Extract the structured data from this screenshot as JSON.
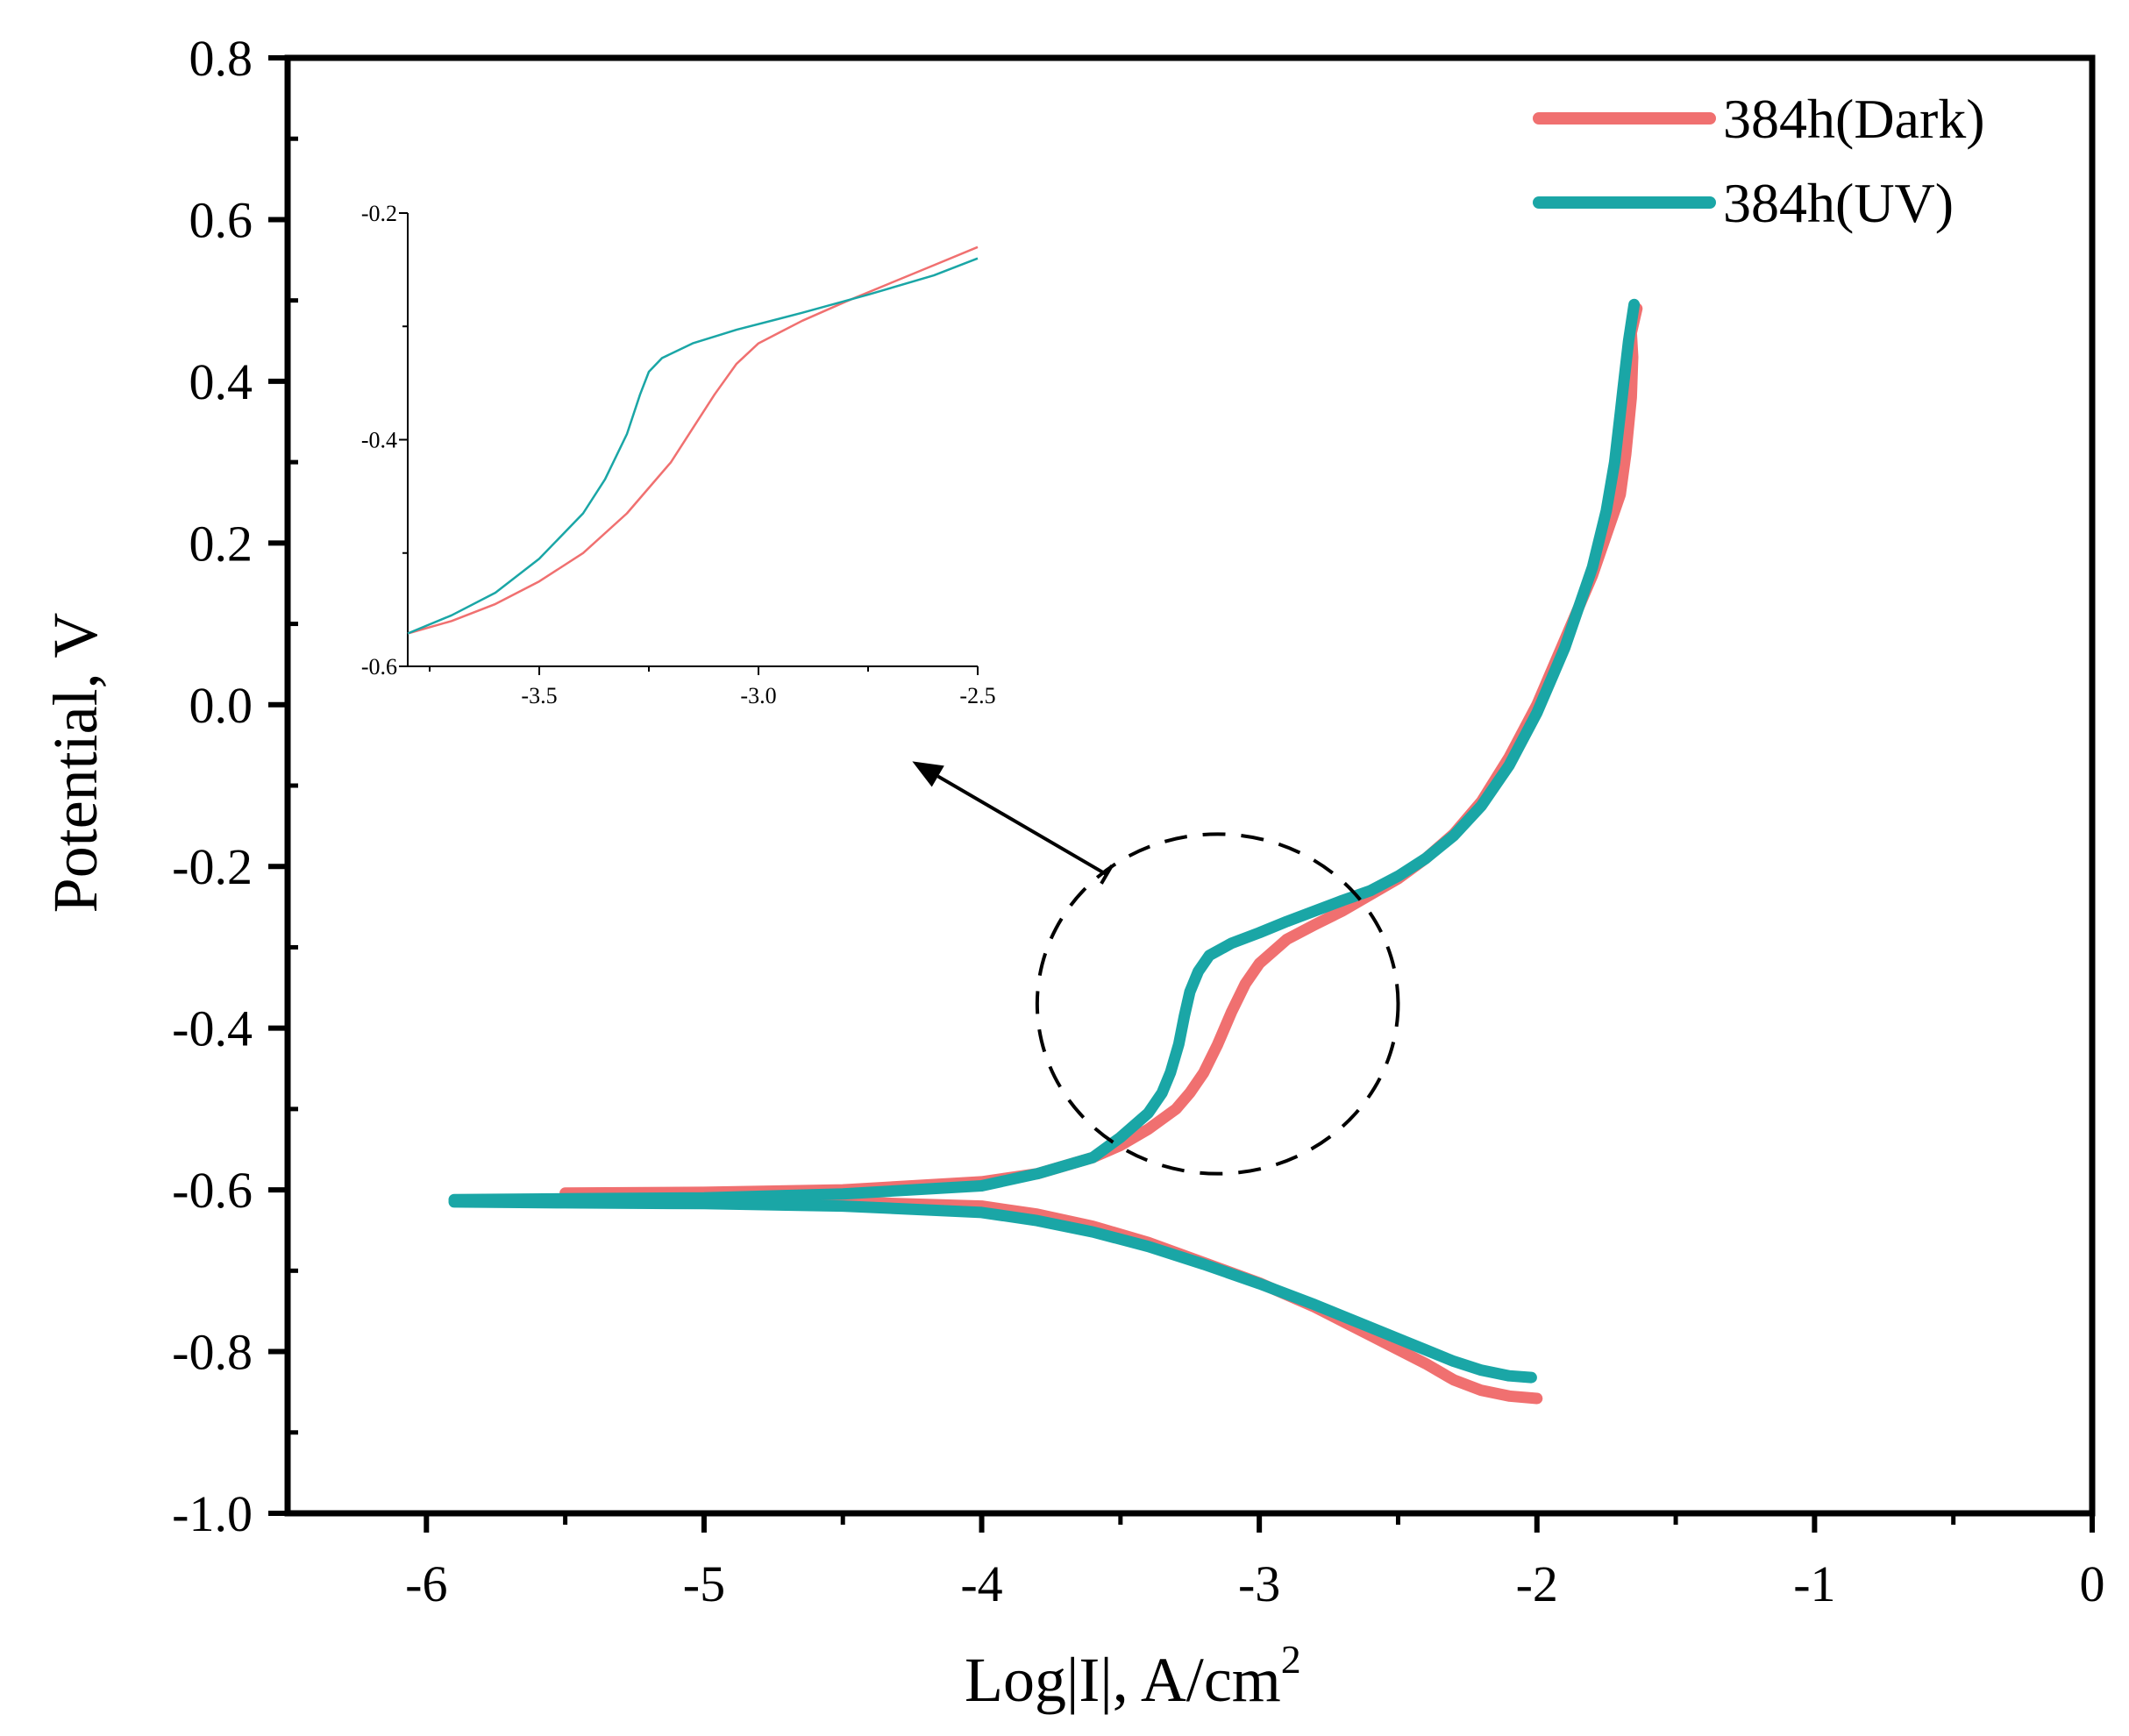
{
  "chart_data": {
    "type": "line",
    "title": "",
    "xlabel": "Log|I|, A/cm",
    "xlabel_superscript": "2",
    "ylabel": "Potential, V",
    "xlim": [
      -6.5,
      0
    ],
    "ylim": [
      -1.0,
      0.8
    ],
    "x_ticks": [
      "-6",
      "-5",
      "-4",
      "-3",
      "-2",
      "-1",
      "0"
    ],
    "y_ticks": [
      "-1.0",
      "-0.8",
      "-0.6",
      "-0.4",
      "-0.2",
      "0.0",
      "0.2",
      "0.4",
      "0.6",
      "0.8"
    ],
    "legend_position": "top-right",
    "series": [
      {
        "name": "384h(Dark)",
        "color": "#F07070",
        "anodic": [
          [
            -5.5,
            -0.604
          ],
          [
            -5.0,
            -0.603
          ],
          [
            -4.5,
            -0.6
          ],
          [
            -4.0,
            -0.59
          ],
          [
            -3.8,
            -0.58
          ],
          [
            -3.6,
            -0.56
          ],
          [
            -3.5,
            -0.545
          ],
          [
            -3.4,
            -0.525
          ],
          [
            -3.3,
            -0.5
          ],
          [
            -3.25,
            -0.48
          ],
          [
            -3.2,
            -0.455
          ],
          [
            -3.15,
            -0.42
          ],
          [
            -3.1,
            -0.38
          ],
          [
            -3.05,
            -0.345
          ],
          [
            -3.0,
            -0.32
          ],
          [
            -2.9,
            -0.29
          ],
          [
            -2.8,
            -0.272
          ],
          [
            -2.7,
            -0.255
          ],
          [
            -2.6,
            -0.235
          ],
          [
            -2.5,
            -0.215
          ],
          [
            -2.4,
            -0.19
          ],
          [
            -2.3,
            -0.16
          ],
          [
            -2.2,
            -0.12
          ],
          [
            -2.1,
            -0.065
          ],
          [
            -2.0,
            0.0
          ],
          [
            -1.9,
            0.08
          ],
          [
            -1.8,
            0.16
          ],
          [
            -1.75,
            0.21
          ],
          [
            -1.7,
            0.26
          ],
          [
            -1.68,
            0.31
          ],
          [
            -1.66,
            0.38
          ],
          [
            -1.655,
            0.43
          ],
          [
            -1.66,
            0.46
          ],
          [
            -1.64,
            0.49
          ]
        ],
        "cathodic": [
          [
            -5.5,
            -0.61
          ],
          [
            -5.0,
            -0.612
          ],
          [
            -4.5,
            -0.615
          ],
          [
            -4.0,
            -0.62
          ],
          [
            -3.8,
            -0.63
          ],
          [
            -3.6,
            -0.645
          ],
          [
            -3.4,
            -0.665
          ],
          [
            -3.2,
            -0.69
          ],
          [
            -3.0,
            -0.715
          ],
          [
            -2.8,
            -0.745
          ],
          [
            -2.6,
            -0.78
          ],
          [
            -2.4,
            -0.815
          ],
          [
            -2.3,
            -0.835
          ],
          [
            -2.2,
            -0.848
          ],
          [
            -2.1,
            -0.855
          ],
          [
            -2.0,
            -0.858
          ]
        ]
      },
      {
        "name": "384h(UV)",
        "color": "#1AA6A6",
        "anodic": [
          [
            -5.9,
            -0.612
          ],
          [
            -5.5,
            -0.611
          ],
          [
            -5.0,
            -0.61
          ],
          [
            -4.5,
            -0.605
          ],
          [
            -4.0,
            -0.595
          ],
          [
            -3.8,
            -0.58
          ],
          [
            -3.6,
            -0.56
          ],
          [
            -3.5,
            -0.535
          ],
          [
            -3.4,
            -0.505
          ],
          [
            -3.35,
            -0.48
          ],
          [
            -3.32,
            -0.455
          ],
          [
            -3.29,
            -0.42
          ],
          [
            -3.27,
            -0.385
          ],
          [
            -3.25,
            -0.355
          ],
          [
            -3.22,
            -0.33
          ],
          [
            -3.18,
            -0.31
          ],
          [
            -3.1,
            -0.295
          ],
          [
            -3.0,
            -0.282
          ],
          [
            -2.9,
            -0.268
          ],
          [
            -2.8,
            -0.255
          ],
          [
            -2.7,
            -0.242
          ],
          [
            -2.6,
            -0.23
          ],
          [
            -2.5,
            -0.212
          ],
          [
            -2.4,
            -0.19
          ],
          [
            -2.3,
            -0.162
          ],
          [
            -2.2,
            -0.125
          ],
          [
            -2.1,
            -0.075
          ],
          [
            -2.0,
            -0.01
          ],
          [
            -1.9,
            0.07
          ],
          [
            -1.8,
            0.17
          ],
          [
            -1.75,
            0.24
          ],
          [
            -1.72,
            0.3
          ],
          [
            -1.7,
            0.36
          ],
          [
            -1.69,
            0.39
          ],
          [
            -1.67,
            0.45
          ],
          [
            -1.65,
            0.495
          ]
        ],
        "cathodic": [
          [
            -5.9,
            -0.615
          ],
          [
            -5.5,
            -0.616
          ],
          [
            -5.0,
            -0.617
          ],
          [
            -4.5,
            -0.62
          ],
          [
            -4.0,
            -0.628
          ],
          [
            -3.8,
            -0.638
          ],
          [
            -3.6,
            -0.652
          ],
          [
            -3.4,
            -0.67
          ],
          [
            -3.2,
            -0.692
          ],
          [
            -3.0,
            -0.716
          ],
          [
            -2.8,
            -0.742
          ],
          [
            -2.6,
            -0.77
          ],
          [
            -2.4,
            -0.798
          ],
          [
            -2.3,
            -0.812
          ],
          [
            -2.2,
            -0.823
          ],
          [
            -2.1,
            -0.83
          ],
          [
            -2.02,
            -0.832
          ]
        ]
      }
    ],
    "inset": {
      "xlim": [
        -3.8,
        -2.5
      ],
      "ylim": [
        -0.6,
        -0.2
      ],
      "x_ticks": [
        "-3.5",
        "-3.0",
        "-2.5"
      ],
      "y_ticks": [
        "-0.6",
        "-0.4",
        "-0.2"
      ],
      "series": [
        {
          "name": "384h(Dark)",
          "points": [
            [
              -3.8,
              -0.571
            ],
            [
              -3.7,
              -0.56
            ],
            [
              -3.6,
              -0.545
            ],
            [
              -3.5,
              -0.525
            ],
            [
              -3.4,
              -0.5
            ],
            [
              -3.3,
              -0.465
            ],
            [
              -3.2,
              -0.42
            ],
            [
              -3.15,
              -0.39
            ],
            [
              -3.1,
              -0.36
            ],
            [
              -3.05,
              -0.333
            ],
            [
              -3.0,
              -0.315
            ],
            [
              -2.9,
              -0.295
            ],
            [
              -2.8,
              -0.278
            ],
            [
              -2.7,
              -0.262
            ],
            [
              -2.6,
              -0.246
            ],
            [
              -2.5,
              -0.23
            ]
          ]
        },
        {
          "name": "384h(UV)",
          "points": [
            [
              -3.8,
              -0.571
            ],
            [
              -3.7,
              -0.555
            ],
            [
              -3.6,
              -0.535
            ],
            [
              -3.5,
              -0.505
            ],
            [
              -3.4,
              -0.465
            ],
            [
              -3.35,
              -0.435
            ],
            [
              -3.3,
              -0.395
            ],
            [
              -3.27,
              -0.36
            ],
            [
              -3.25,
              -0.34
            ],
            [
              -3.22,
              -0.328
            ],
            [
              -3.15,
              -0.315
            ],
            [
              -3.05,
              -0.303
            ],
            [
              -2.9,
              -0.288
            ],
            [
              -2.75,
              -0.272
            ],
            [
              -2.6,
              -0.255
            ],
            [
              -2.5,
              -0.24
            ]
          ]
        }
      ]
    },
    "annotation": {
      "circle_center": [
        -3.15,
        -0.37
      ],
      "circle_radius_x": 0.65,
      "circle_radius_y": 0.21,
      "arrow_from": [
        -3.55,
        -0.21
      ],
      "arrow_to": [
        -4.25,
        -0.07
      ]
    }
  }
}
